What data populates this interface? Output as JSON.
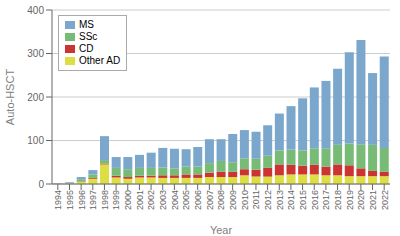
{
  "chart_data": {
    "type": "bar",
    "stacked": true,
    "categories": [
      "1994",
      "1995",
      "1996",
      "1997",
      "1998",
      "1999",
      "2000",
      "2001",
      "2002",
      "2003",
      "2004",
      "2005",
      "2006",
      "2007",
      "2008",
      "2009",
      "2010",
      "2011",
      "2012",
      "2013",
      "2014",
      "2015",
      "2016",
      "2017",
      "2018",
      "2019",
      "2020",
      "2021",
      "2022"
    ],
    "series": [
      {
        "name": "Other AD",
        "color": "#DDDD44",
        "values": [
          0,
          1,
          5,
          12,
          45,
          15,
          12,
          15,
          15,
          14,
          14,
          14,
          14,
          16,
          16,
          16,
          20,
          17,
          17,
          20,
          22,
          22,
          22,
          20,
          20,
          18,
          18,
          18,
          18
        ]
      },
      {
        "name": "CD",
        "color": "#CC3333",
        "values": [
          0,
          0,
          1,
          2,
          2,
          4,
          4,
          4,
          4,
          6,
          6,
          8,
          8,
          10,
          12,
          12,
          14,
          16,
          20,
          25,
          22,
          20,
          22,
          20,
          25,
          25,
          18,
          12,
          10
        ]
      },
      {
        "name": "SSc",
        "color": "#77BB77",
        "values": [
          0,
          1,
          5,
          8,
          8,
          18,
          18,
          18,
          18,
          18,
          16,
          18,
          18,
          22,
          25,
          22,
          25,
          25,
          28,
          32,
          35,
          35,
          38,
          42,
          45,
          50,
          55,
          60,
          55
        ]
      },
      {
        "name": "MS",
        "color": "#7BA7CC",
        "values": [
          1,
          2,
          5,
          10,
          55,
          25,
          28,
          30,
          35,
          45,
          45,
          40,
          45,
          55,
          50,
          65,
          65,
          62,
          70,
          85,
          100,
          120,
          140,
          155,
          175,
          210,
          240,
          165,
          210
        ]
      }
    ],
    "xlabel": "Year",
    "ylabel": "Auto-HSCT",
    "ylim": [
      0,
      400
    ],
    "yticks": [
      0,
      100,
      200,
      300,
      400
    ],
    "grid": true,
    "legend": "upper left"
  }
}
